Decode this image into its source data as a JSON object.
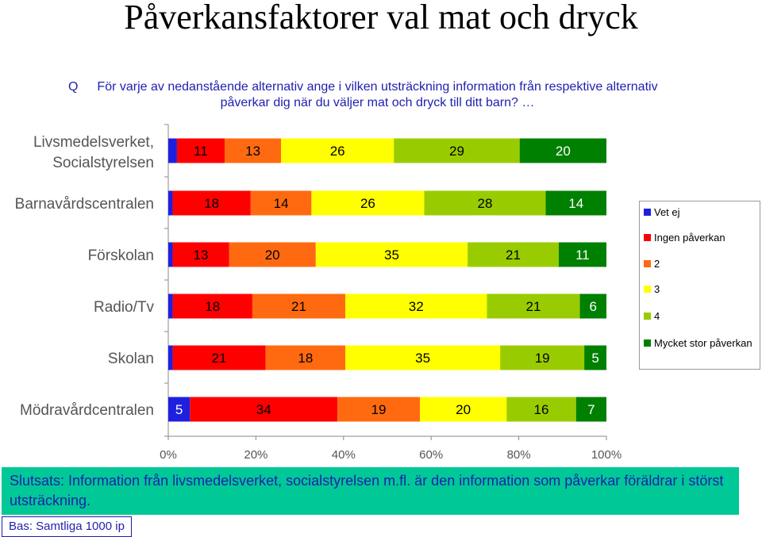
{
  "title": "Påverkansfaktorer val mat och dryck",
  "question": {
    "prefix": "Q",
    "text": "För varje av nedanstående alternativ ange i vilken utsträckning information från respektive alternativ påverkar dig när du väljer mat och dryck till ditt barn? …"
  },
  "chart_data": {
    "type": "bar",
    "orientation": "horizontal",
    "stacked": "percent",
    "categories": [
      "Livsmedelsverket, Socialstyrelsen",
      "Barnavårdscentralen",
      "Förskolan",
      "Radio/Tv",
      "Skolan",
      "Mödravårdcentralen"
    ],
    "series": [
      {
        "name": "Vet ej",
        "color": "#1f1fe0",
        "values": [
          2,
          1,
          1,
          1,
          1,
          5
        ]
      },
      {
        "name": "Ingen påverkan",
        "color": "#ff0000",
        "values": [
          11,
          18,
          13,
          18,
          21,
          34
        ]
      },
      {
        "name": "2",
        "color": "#ff6a10",
        "values": [
          13,
          14,
          20,
          21,
          18,
          19
        ]
      },
      {
        "name": "3",
        "color": "#ffff00",
        "values": [
          26,
          26,
          35,
          32,
          35,
          20
        ]
      },
      {
        "name": "4",
        "color": "#99cc00",
        "values": [
          29,
          28,
          21,
          21,
          19,
          16
        ]
      },
      {
        "name": "Mycket stor påverkan",
        "color": "#008000",
        "values": [
          20,
          14,
          11,
          6,
          5,
          7
        ]
      }
    ],
    "xaxis": {
      "ticks": [
        "0%",
        "20%",
        "40%",
        "60%",
        "80%",
        "100%"
      ],
      "range": [
        0,
        100
      ]
    },
    "legend_position": "right",
    "grid": false
  },
  "conclusion": "Slutsats: Information från livsmedelsverket, socialstyrelsen m.fl. är den information som påverkar föräldrar i störst utsträckning.",
  "base_note": "Bas: Samtliga 1000 ip"
}
